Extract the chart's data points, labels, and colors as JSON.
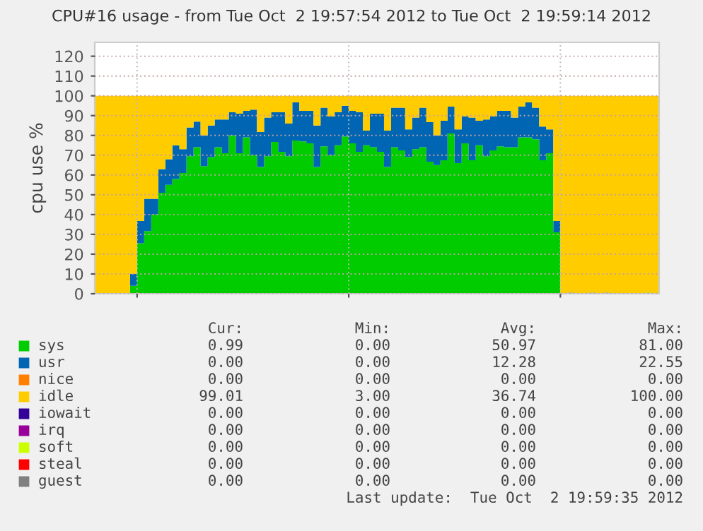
{
  "chart_data": {
    "type": "area",
    "stacked": true,
    "title": "CPU#16 usage - from Tue Oct  2 19:57:54 2012 to Tue Oct  2 19:59:14 2012",
    "ylabel": "cpu use %",
    "categories": [
      null,
      null,
      null,
      null,
      null,
      null,
      null,
      null,
      null,
      null,
      null,
      null,
      null,
      null,
      null,
      null,
      null,
      null,
      null,
      null,
      null,
      null,
      null,
      null,
      null,
      null,
      null,
      null,
      null,
      null,
      null,
      null,
      null,
      null,
      null,
      null,
      null,
      null,
      null,
      null,
      null,
      null,
      null,
      null,
      null,
      null,
      null,
      null,
      null,
      null,
      null,
      null,
      null,
      null,
      null,
      null,
      null,
      null,
      null,
      null,
      null,
      null,
      null,
      null,
      null,
      null,
      null,
      null,
      null,
      null,
      null,
      null,
      null,
      null,
      null,
      null,
      null,
      null,
      null,
      null
    ],
    "ylim": [
      0,
      127
    ],
    "yticks": [
      0,
      10,
      20,
      30,
      40,
      50,
      60,
      70,
      80,
      90,
      100,
      110,
      120
    ],
    "grid": true,
    "legend": "bottom",
    "series": [
      {
        "name": "sys",
        "color": "#00cc00",
        "values": [
          0,
          0,
          0,
          0,
          0,
          4,
          25.5,
          31.7,
          40,
          51,
          55,
          58,
          61,
          69.5,
          74,
          64.5,
          69,
          74,
          71,
          80,
          71,
          79,
          70,
          64,
          69.5,
          76.7,
          71.7,
          69.5,
          77.4,
          77,
          76,
          64,
          74.5,
          70,
          75,
          79.5,
          76,
          71.7,
          75,
          74,
          71.7,
          64,
          74,
          72.4,
          69,
          73,
          74,
          66.7,
          65,
          67.4,
          81,
          66,
          76,
          67.4,
          75,
          69.5,
          72.4,
          74.5,
          74,
          74,
          79,
          79,
          78,
          67.4,
          71,
          31,
          0,
          0,
          0,
          0,
          0,
          0,
          0,
          0,
          0,
          0,
          0,
          0,
          0.5,
          0
        ]
      },
      {
        "name": "usr",
        "color": "#0066b3",
        "values": [
          0,
          0,
          0,
          0,
          0,
          6,
          11.2,
          16.3,
          8,
          12,
          13,
          17,
          12,
          14.5,
          13,
          15.5,
          16,
          14,
          17,
          11.7,
          20,
          13.4,
          23,
          17.7,
          19.5,
          15,
          20,
          16.5,
          19.3,
          15.4,
          16.4,
          21,
          19.5,
          19.5,
          16.7,
          15.5,
          16.4,
          20,
          7.4,
          17,
          19.3,
          18.4,
          20,
          21.6,
          14,
          16,
          20,
          20,
          15,
          20,
          13.5,
          17,
          13.5,
          21.6,
          12.4,
          18.5,
          17.1,
          17.9,
          18.4,
          15,
          15.5,
          17.7,
          16,
          17.1,
          12,
          5.7,
          0,
          0.5,
          0,
          0,
          0.5,
          0,
          0.5,
          0,
          0,
          0,
          0,
          0,
          0,
          0
        ]
      },
      {
        "name": "nice",
        "color": "#ff8000",
        "values": [
          null,
          null,
          null,
          null,
          null,
          null,
          null,
          null,
          null,
          null,
          null,
          null,
          null,
          null,
          null,
          null,
          null,
          null,
          null,
          null,
          null,
          null,
          null,
          null,
          null,
          null,
          null,
          null,
          null,
          null,
          null,
          null,
          null,
          null,
          null,
          null,
          null,
          null,
          null,
          null,
          null,
          null,
          null,
          null,
          null,
          null,
          null,
          null,
          null,
          null,
          null,
          null,
          null,
          null,
          null,
          null,
          null,
          null,
          null,
          null,
          null,
          null,
          null,
          null,
          null,
          null,
          null,
          null,
          null,
          null,
          null,
          null,
          null,
          null,
          null,
          null,
          null,
          null,
          null,
          null
        ]
      },
      {
        "name": "idle",
        "color": "#ffcc00",
        "values": [
          100,
          100,
          100,
          100,
          100,
          90,
          63.3,
          52,
          52,
          37,
          32,
          25,
          27,
          16,
          13,
          20,
          15,
          12,
          12,
          8.3,
          9,
          7.6,
          7,
          18.3,
          11,
          8.3,
          8.3,
          14,
          3.3,
          7.6,
          7.6,
          15,
          6,
          10.5,
          8.3,
          5,
          7.6,
          8.3,
          17.6,
          9,
          9,
          17.6,
          6,
          6,
          17,
          11,
          6,
          13.3,
          20,
          12.6,
          5.5,
          17,
          10.5,
          11,
          12.6,
          12,
          10.5,
          7.6,
          7.6,
          11,
          5.5,
          3.3,
          6,
          15.5,
          17,
          63.3,
          100,
          99.5,
          100,
          100,
          99.5,
          100,
          99.5,
          100,
          100,
          100,
          100,
          100,
          99.5,
          100
        ]
      },
      {
        "name": "iowait",
        "color": "#330099",
        "values": [
          null,
          null,
          null,
          null,
          null,
          null,
          null,
          null,
          null,
          null,
          null,
          null,
          null,
          null,
          null,
          null,
          null,
          null,
          null,
          null,
          null,
          null,
          null,
          null,
          null,
          null,
          null,
          null,
          null,
          null,
          null,
          null,
          null,
          null,
          null,
          null,
          null,
          null,
          null,
          null,
          null,
          null,
          null,
          null,
          null,
          null,
          null,
          null,
          null,
          null,
          null,
          null,
          null,
          null,
          null,
          null,
          null,
          null,
          null,
          null,
          null,
          null,
          null,
          null,
          null,
          null,
          null,
          null,
          null,
          null,
          null,
          null,
          null,
          null,
          null,
          null,
          null,
          null,
          null,
          null
        ]
      },
      {
        "name": "irq",
        "color": "#990099",
        "values": [
          null,
          null,
          null,
          null,
          null,
          null,
          null,
          null,
          null,
          null,
          null,
          null,
          null,
          null,
          null,
          null,
          null,
          null,
          null,
          null,
          null,
          null,
          null,
          null,
          null,
          null,
          null,
          null,
          null,
          null,
          null,
          null,
          null,
          null,
          null,
          null,
          null,
          null,
          null,
          null,
          null,
          null,
          null,
          null,
          null,
          null,
          null,
          null,
          null,
          null,
          null,
          null,
          null,
          null,
          null,
          null,
          null,
          null,
          null,
          null,
          null,
          null,
          null,
          null,
          null,
          null,
          null,
          null,
          null,
          null,
          null,
          null,
          null,
          null,
          null,
          null,
          null,
          null,
          null,
          null
        ]
      },
      {
        "name": "soft",
        "color": "#ccff00",
        "values": [
          null,
          null,
          null,
          null,
          null,
          null,
          null,
          null,
          null,
          null,
          null,
          null,
          null,
          null,
          null,
          null,
          null,
          null,
          null,
          null,
          null,
          null,
          null,
          null,
          null,
          null,
          null,
          null,
          null,
          null,
          null,
          null,
          null,
          null,
          null,
          null,
          null,
          null,
          null,
          null,
          null,
          null,
          null,
          null,
          null,
          null,
          null,
          null,
          null,
          null,
          null,
          null,
          null,
          null,
          null,
          null,
          null,
          null,
          null,
          null,
          null,
          null,
          null,
          null,
          null,
          null,
          null,
          null,
          null,
          null,
          null,
          null,
          null,
          null,
          null,
          null,
          null,
          null,
          null,
          null
        ]
      },
      {
        "name": "steal",
        "color": "#ff0000",
        "values": [
          null,
          null,
          null,
          null,
          null,
          null,
          null,
          null,
          null,
          null,
          null,
          null,
          null,
          null,
          null,
          null,
          null,
          null,
          null,
          null,
          null,
          null,
          null,
          null,
          null,
          null,
          null,
          null,
          null,
          null,
          null,
          null,
          null,
          null,
          null,
          null,
          null,
          null,
          null,
          null,
          null,
          null,
          null,
          null,
          null,
          null,
          null,
          null,
          null,
          null,
          null,
          null,
          null,
          null,
          null,
          null,
          null,
          null,
          null,
          null,
          null,
          null,
          null,
          null,
          null,
          null,
          null,
          null,
          null,
          null,
          null,
          null,
          null,
          null,
          null,
          null,
          null,
          null,
          null,
          null
        ]
      },
      {
        "name": "guest",
        "color": "#808080",
        "values": [
          null,
          null,
          null,
          null,
          null,
          null,
          null,
          null,
          null,
          null,
          null,
          null,
          null,
          null,
          null,
          null,
          null,
          null,
          null,
          null,
          null,
          null,
          null,
          null,
          null,
          null,
          null,
          null,
          null,
          null,
          null,
          null,
          null,
          null,
          null,
          null,
          null,
          null,
          null,
          null,
          null,
          null,
          null,
          null,
          null,
          null,
          null,
          null,
          null,
          null,
          null,
          null,
          null,
          null,
          null,
          null,
          null,
          null,
          null,
          null,
          null,
          null,
          null,
          null,
          null,
          null,
          null,
          null,
          null,
          null,
          null,
          null,
          null,
          null,
          null,
          null,
          null,
          null,
          null,
          null
        ]
      }
    ],
    "annotations": [
      "Cur:",
      "Min:",
      "Avg:",
      "Max:",
      "0.99",
      "0.00",
      "50.97",
      "81.00",
      "0.00",
      "0.00",
      "12.28",
      "22.55",
      "0.00",
      "0.00",
      "0.00",
      "0.00",
      "99.01",
      "3.00",
      "36.74",
      "100.00",
      "0.00",
      "0.00",
      "0.00",
      "0.00",
      "0.00",
      "0.00",
      "0.00",
      "0.00",
      "0.00",
      "0.00",
      "0.00",
      "0.00",
      "0.00",
      "0.00",
      "0.00",
      "0.00",
      "0.00",
      "0.00",
      "0.00",
      "0.00",
      "Last update:  Tue Oct  2 19:59:35 2012"
    ]
  }
}
